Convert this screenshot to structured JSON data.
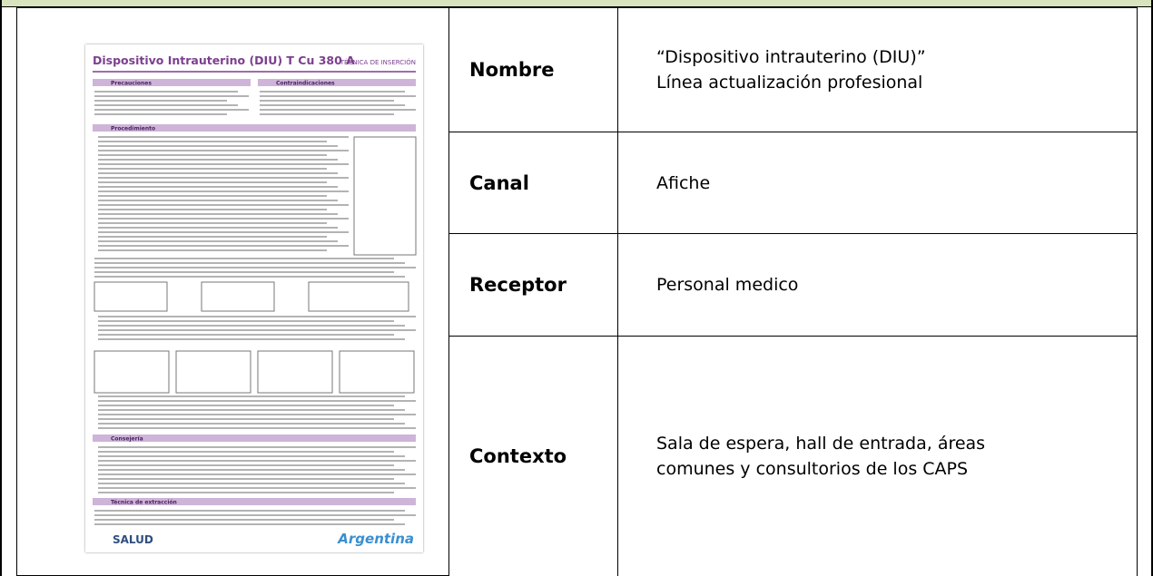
{
  "poster": {
    "title": "Dispositivo Intrauterino (DIU) T Cu 380 A",
    "subtitle": "TÉCNICA DE INSERCIÓN",
    "sections": [
      "Precauciones",
      "Contraindicaciones",
      "Procedimiento",
      "Consejería",
      "Técnica de extracción"
    ],
    "logo_left": "SALUD",
    "logo_right": "Argentina"
  },
  "table": {
    "rows": [
      [
        "Nombre",
        "“Dispositivo intrauterino (DIU)”",
        "Línea actualización profesional"
      ],
      [
        "Canal",
        "Afiche"
      ],
      [
        "Receptor",
        "Personal medico"
      ],
      [
        "Contexto",
        "Sala de espera, hall de entrada, áreas",
        "comunes y consultorios de los CAPS"
      ]
    ]
  }
}
